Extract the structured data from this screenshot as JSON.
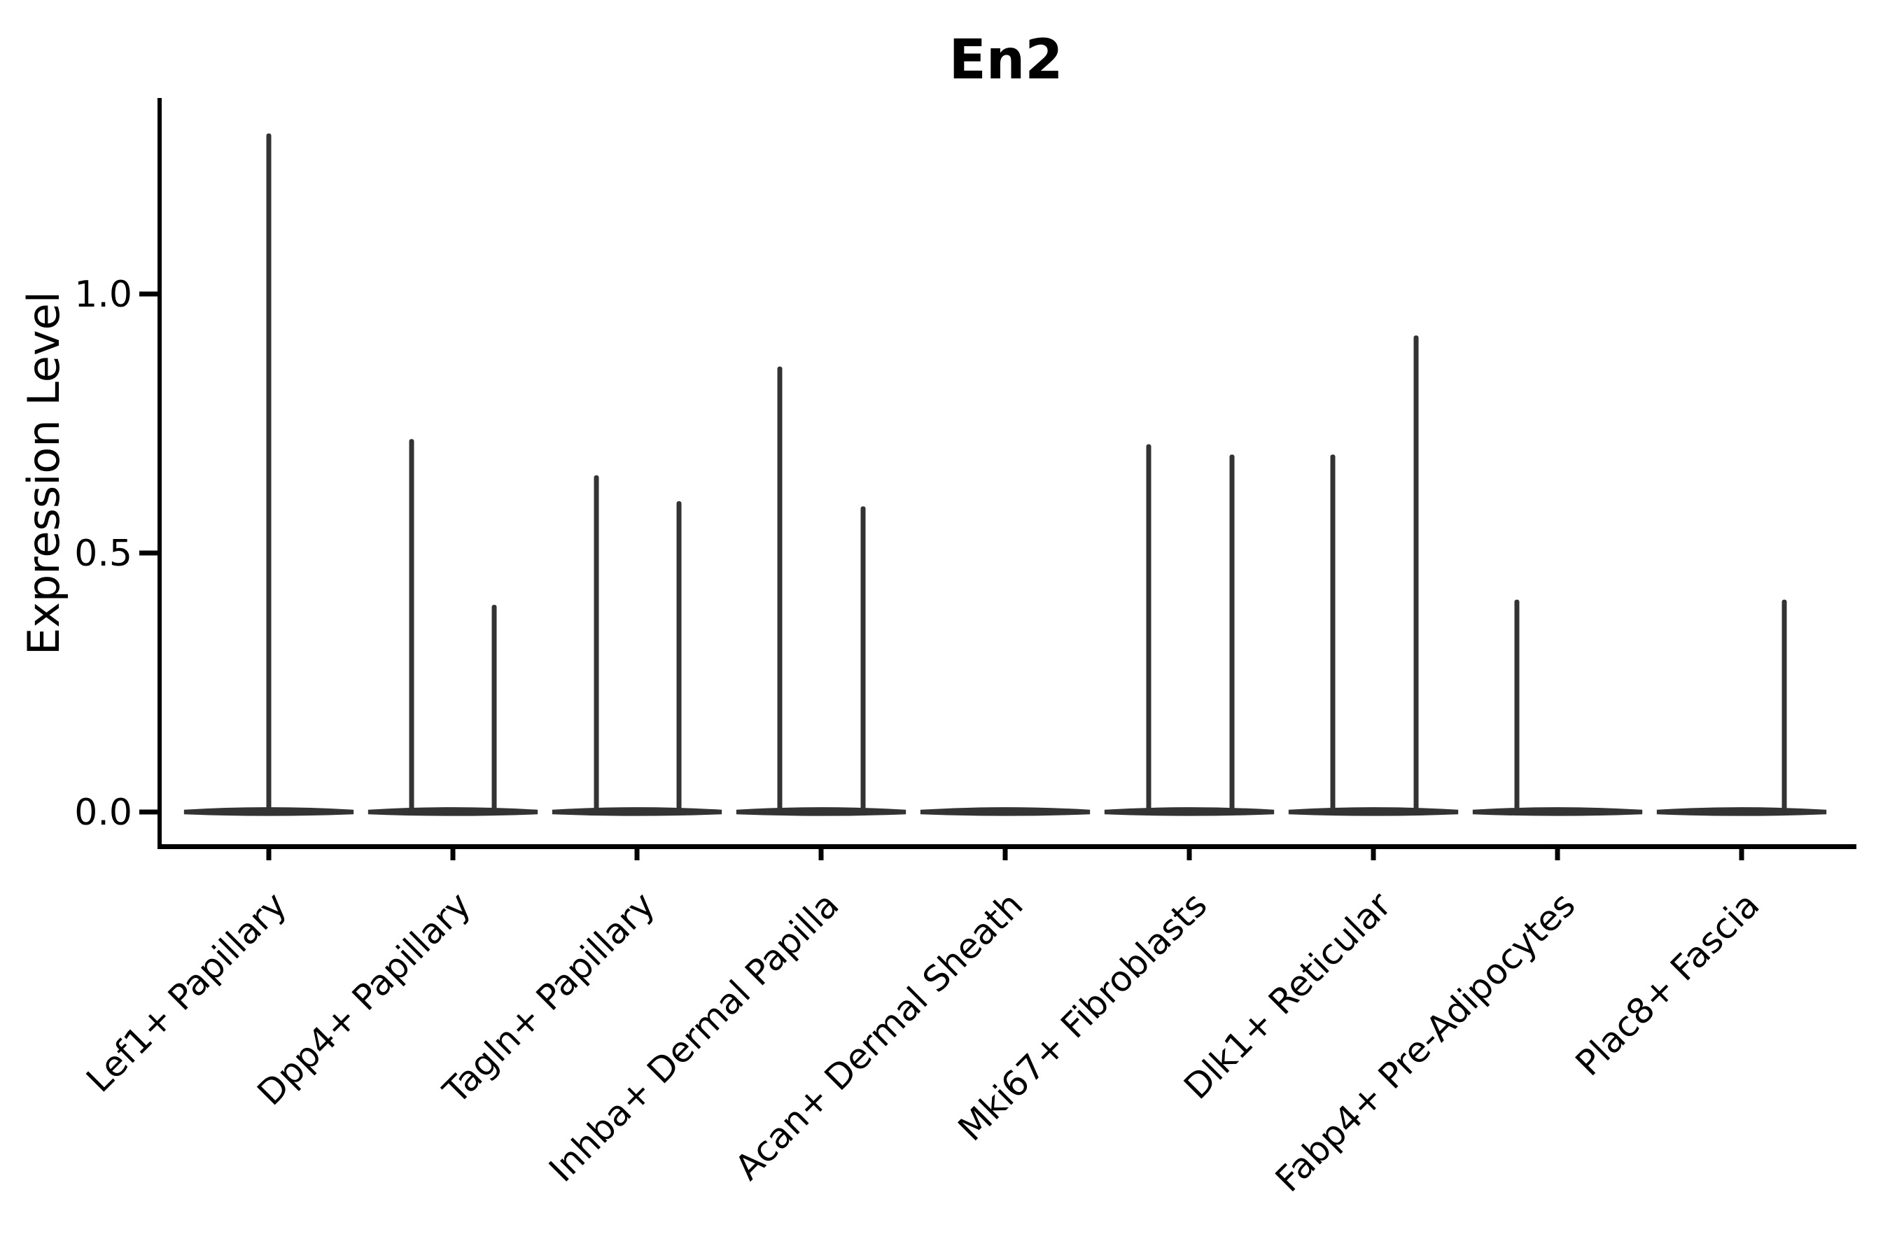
{
  "figure": {
    "background": "#ffffff",
    "ink_color": "#000000",
    "violin_color": "#333333"
  },
  "chart_data": {
    "type": "violin",
    "title": "En2",
    "ylabel": "Expression Level",
    "xlabel": "",
    "grid": false,
    "legend": null,
    "ylim": [
      -0.07,
      1.38
    ],
    "yticks": [
      0.0,
      0.5,
      1.0
    ],
    "ytick_labels": [
      "0.0",
      "0.5",
      "1.0"
    ],
    "categories": [
      "Lef1+ Papillary",
      "Dpp4+ Papillary",
      "Tagln+ Papillary",
      "Inhba+ Dermal Papilla",
      "Acan+ Dermal Sheath",
      "Mki67+ Fibroblasts",
      "Dlk1+ Reticular",
      "Fabp4+ Pre-Adipocytes",
      "Plac8+ Fascia"
    ],
    "violins": [
      {
        "category": "Lef1+ Papillary",
        "max_value": 1.31,
        "spikes": [
          {
            "offset": 0,
            "value": 1.31
          }
        ]
      },
      {
        "category": "Dpp4+ Papillary",
        "max_value": 0.72,
        "spikes": [
          {
            "offset": -59,
            "value": 0.72
          },
          {
            "offset": 59,
            "value": 0.4
          }
        ]
      },
      {
        "category": "Tagln+ Papillary",
        "max_value": 0.65,
        "spikes": [
          {
            "offset": -58,
            "value": 0.65
          },
          {
            "offset": 60,
            "value": 0.6
          }
        ]
      },
      {
        "category": "Inhba+ Dermal Papilla",
        "max_value": 0.86,
        "spikes": [
          {
            "offset": -59,
            "value": 0.86
          },
          {
            "offset": 60,
            "value": 0.59
          }
        ]
      },
      {
        "category": "Acan+ Dermal Sheath",
        "max_value": 0.0,
        "spikes": []
      },
      {
        "category": "Mki67+ Fibroblasts",
        "max_value": 0.71,
        "spikes": [
          {
            "offset": -58,
            "value": 0.71
          },
          {
            "offset": 61,
            "value": 0.69
          }
        ]
      },
      {
        "category": "Dlk1+ Reticular",
        "max_value": 0.92,
        "spikes": [
          {
            "offset": -58,
            "value": 0.69
          },
          {
            "offset": 61,
            "value": 0.92
          }
        ]
      },
      {
        "category": "Fabp4+ Pre-Adipocytes",
        "max_value": 0.41,
        "spikes": [
          {
            "offset": -58,
            "value": 0.41
          }
        ]
      },
      {
        "category": "Plac8+ Fascia",
        "max_value": 0.41,
        "spikes": [
          {
            "offset": 61,
            "value": 0.41
          }
        ]
      }
    ]
  }
}
